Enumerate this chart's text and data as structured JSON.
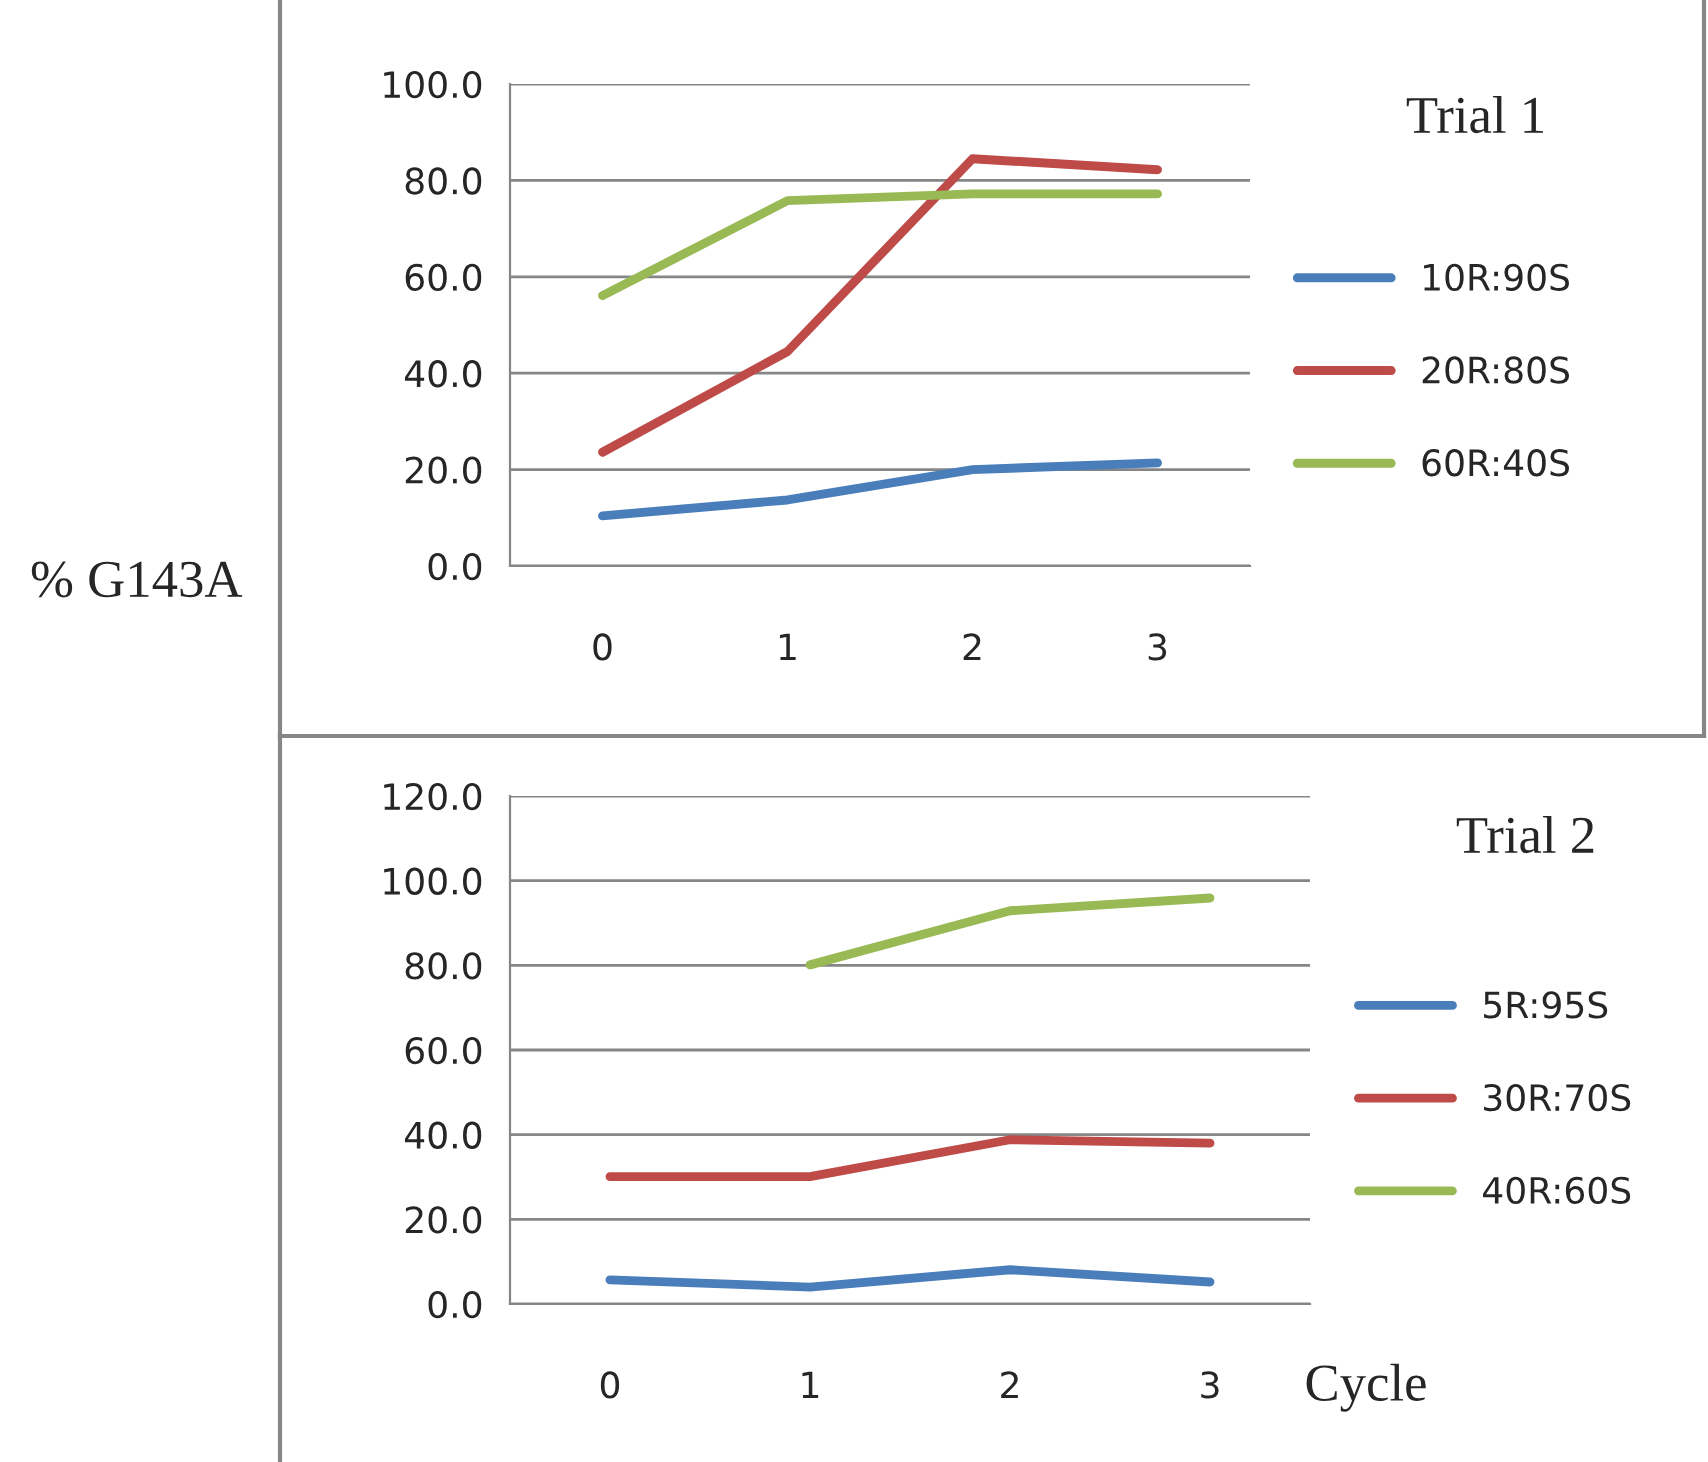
{
  "chart_data": [
    {
      "type": "line",
      "annotations": [
        "Trial 1"
      ],
      "ylabel": "% G143A",
      "categories": [
        "0",
        "1",
        "2",
        "3"
      ],
      "ylim": [
        0,
        100
      ],
      "yticks": [
        {
          "value": 0,
          "label": "0.0"
        },
        {
          "value": 20,
          "label": "20.0"
        },
        {
          "value": 40,
          "label": "40.0"
        },
        {
          "value": 60,
          "label": "60.0"
        },
        {
          "value": 80,
          "label": "80.0"
        },
        {
          "value": 100,
          "label": "100.0"
        }
      ],
      "grid": "y",
      "legend": "right",
      "series": [
        {
          "name": "10R:90S",
          "color": "#4a7ebb",
          "values": [
            10.4,
            13.7,
            20.0,
            21.4
          ]
        },
        {
          "name": "20R:80S",
          "color": "#be4b48",
          "values": [
            23.6,
            44.5,
            84.5,
            82.2
          ]
        },
        {
          "name": "60R:40S",
          "color": "#98b954",
          "values": [
            56.1,
            75.8,
            77.2,
            77.2
          ]
        }
      ]
    },
    {
      "type": "line",
      "annotations": [
        "Trial 2"
      ],
      "xlabel": "Cycle",
      "categories": [
        "0",
        "1",
        "2",
        "3"
      ],
      "ylim": [
        0,
        120
      ],
      "yticks": [
        {
          "value": 0,
          "label": "0.0"
        },
        {
          "value": 20,
          "label": "20.0"
        },
        {
          "value": 40,
          "label": "40.0"
        },
        {
          "value": 60,
          "label": "60.0"
        },
        {
          "value": 80,
          "label": "80.0"
        },
        {
          "value": 100,
          "label": "100.0"
        },
        {
          "value": 120,
          "label": "120.0"
        }
      ],
      "grid": "y",
      "legend": "right",
      "series": [
        {
          "name": "5R:95S",
          "color": "#4a7ebb",
          "values": [
            5.7,
            4.0,
            8.1,
            5.2
          ]
        },
        {
          "name": "30R:70S",
          "color": "#be4b48",
          "values": [
            30.1,
            30.1,
            38.8,
            38.0
          ]
        },
        {
          "name": "40R:60S",
          "color": "#98b954",
          "values": [
            null,
            80.1,
            92.9,
            95.9
          ]
        }
      ]
    }
  ]
}
